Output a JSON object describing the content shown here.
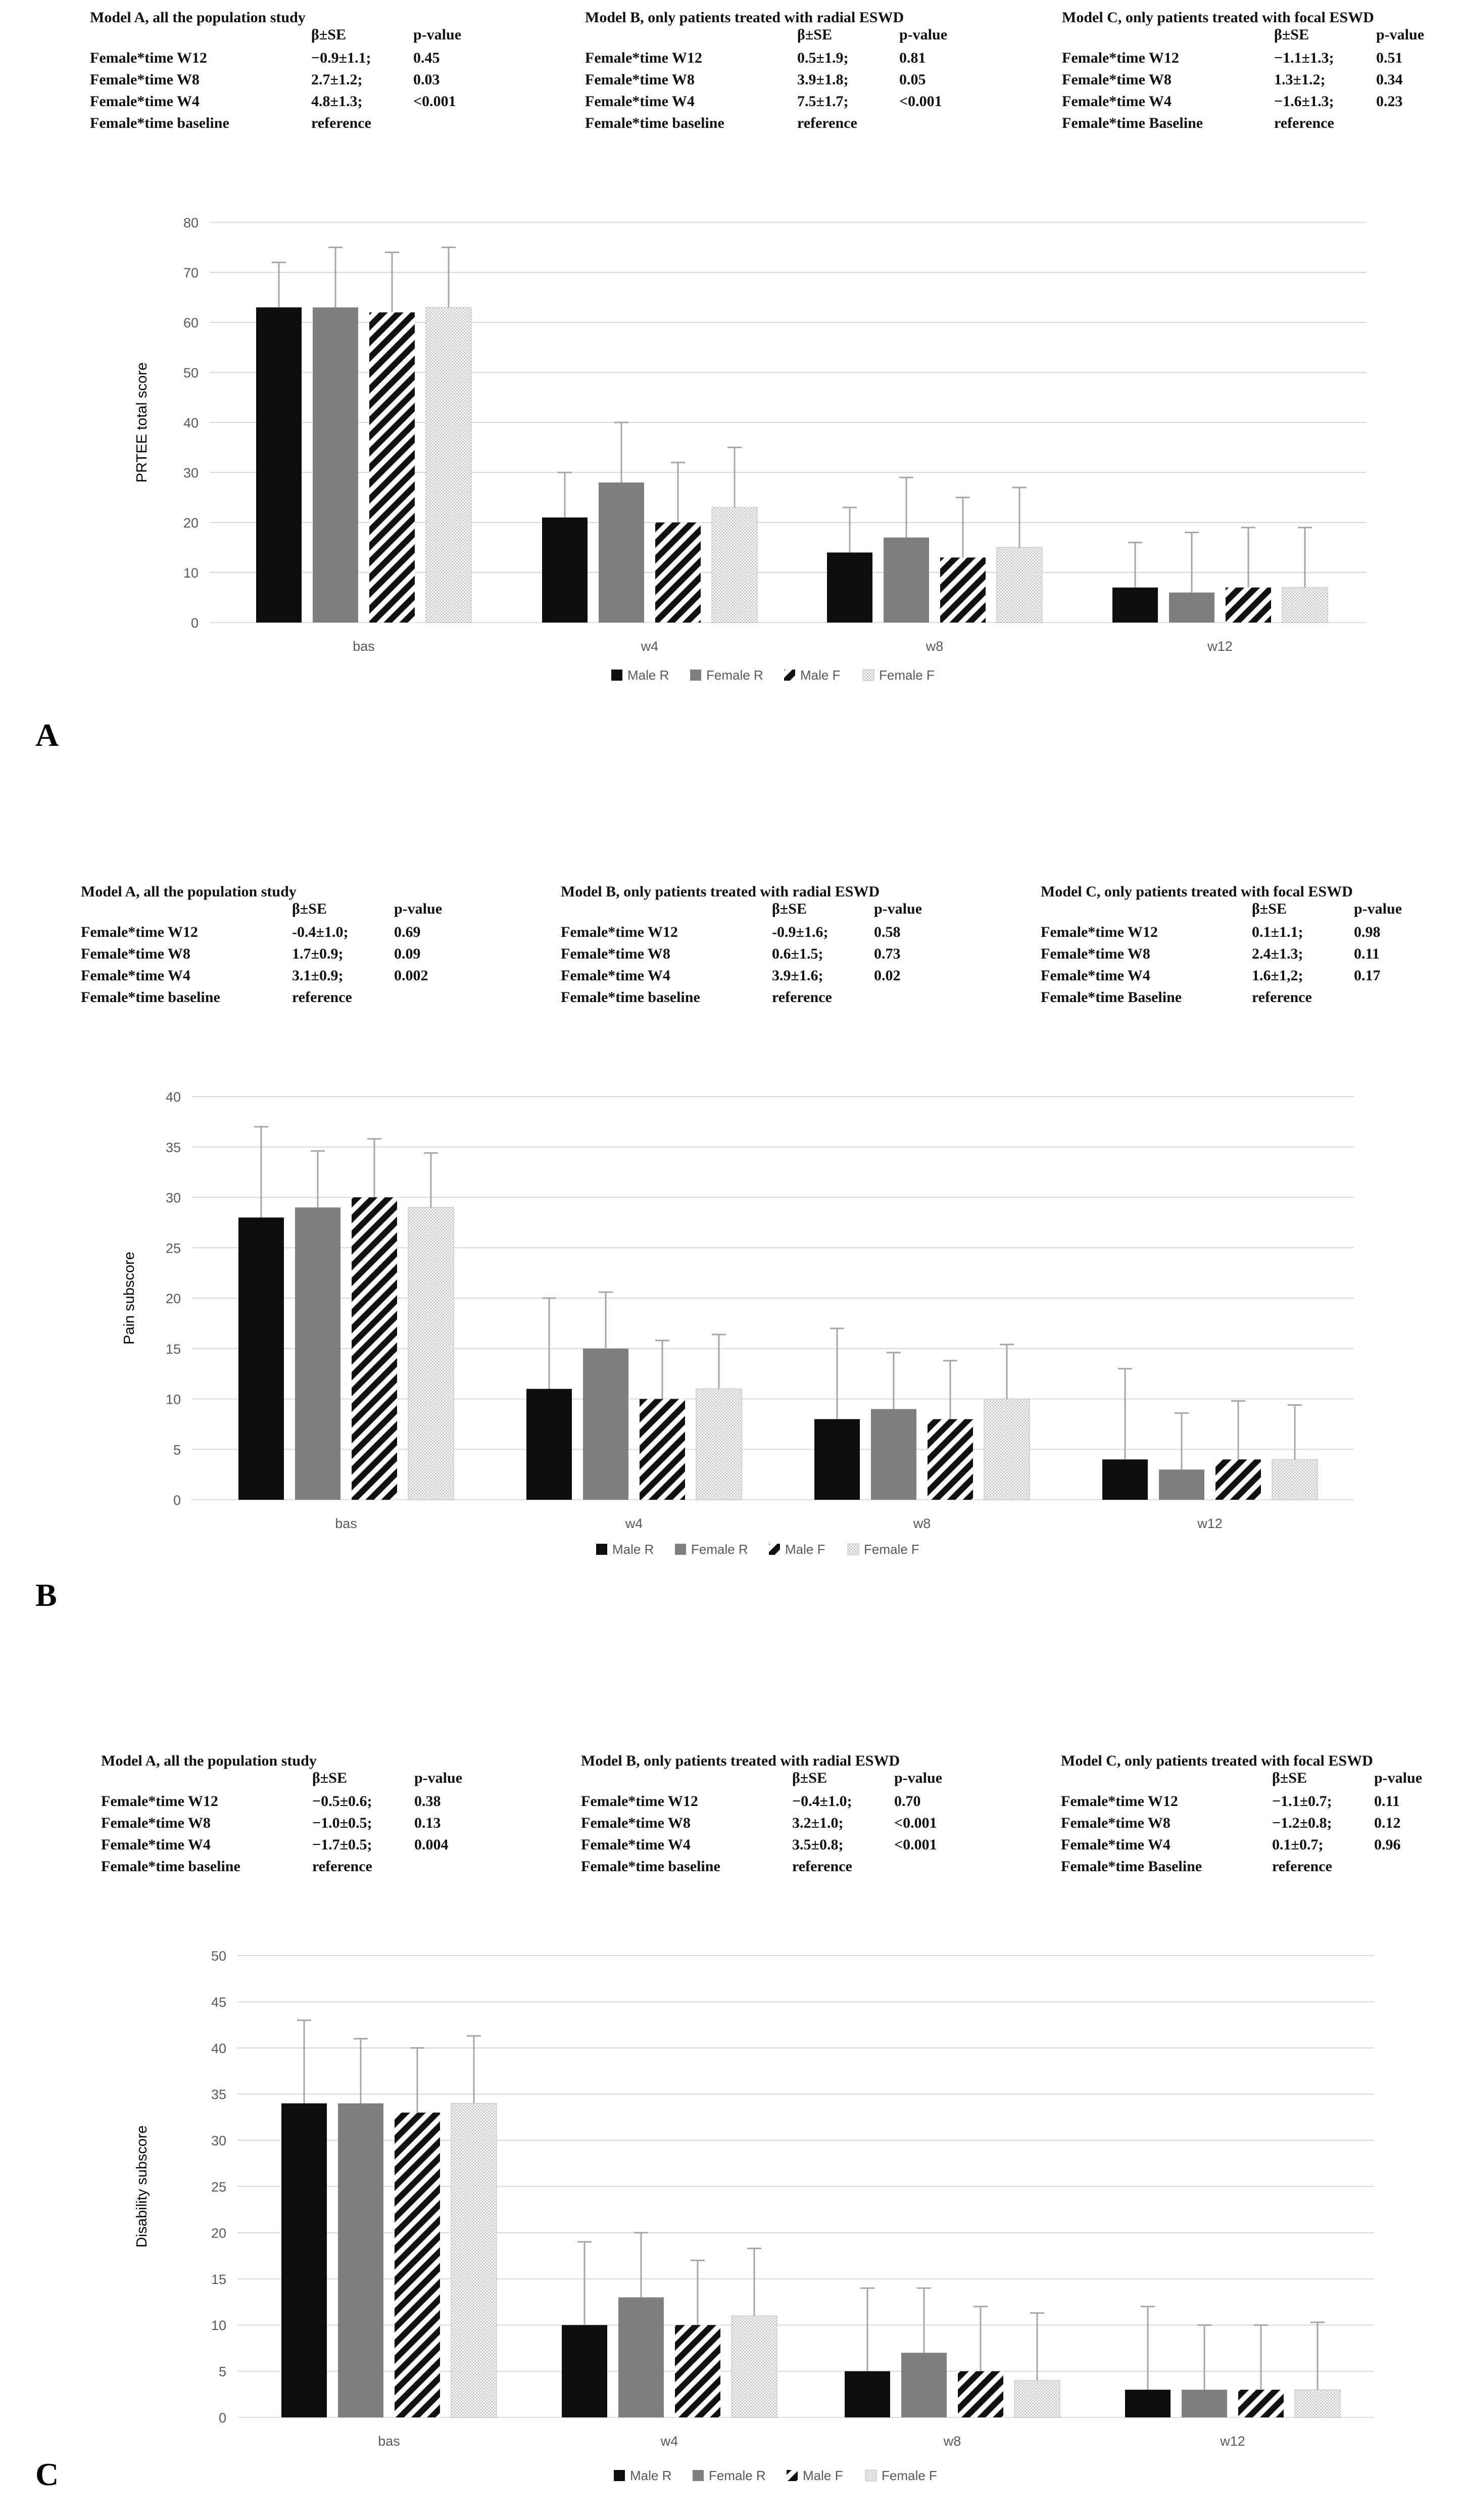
{
  "colors": {
    "male_r": "#0d0d0d",
    "female_r": "#7f7f7f",
    "male_f": "#111111",
    "female_f": "#d6d6d6",
    "gridline": "#d9d9d9",
    "error_bar": "#a6a6a6",
    "axis_text": "#595959"
  },
  "panels": [
    {
      "letter": "A",
      "models": [
        {
          "title": "Model A, all the population study",
          "h_beta": "β±SE",
          "h_p": "p-value",
          "rows": [
            {
              "label": "Female*time W12",
              "beta": "−0.9±1.1;",
              "p": "0.45"
            },
            {
              "label": "Female*time W8",
              "beta": "2.7±1.2;",
              "p": "0.03"
            },
            {
              "label": "Female*time W4",
              "beta": "4.8±1.3;",
              "p": "<0.001"
            },
            {
              "label": "Female*time baseline",
              "beta": "reference",
              "p": ""
            }
          ]
        },
        {
          "title": "Model B, only patients treated with radial ESWD",
          "h_beta": "β±SE",
          "h_p": "p-value",
          "rows": [
            {
              "label": "Female*time W12",
              "beta": "0.5±1.9;",
              "p": "0.81"
            },
            {
              "label": "Female*time W8",
              "beta": "3.9±1.8;",
              "p": "0.05"
            },
            {
              "label": "Female*time W4",
              "beta": "7.5±1.7;",
              "p": "<0.001"
            },
            {
              "label": "Female*time baseline",
              "beta": "reference",
              "p": ""
            }
          ]
        },
        {
          "title": "Model C, only patients treated with focal ESWD",
          "h_beta": "β±SE",
          "h_p": "p-value",
          "rows": [
            {
              "label": "Female*time W12",
              "beta": "−1.1±1.3;",
              "p": "0.51"
            },
            {
              "label": "Female*time W8",
              "beta": "1.3±1.2;",
              "p": "0.34"
            },
            {
              "label": "Female*time W4",
              "beta": "−1.6±1.3;",
              "p": "0.23"
            },
            {
              "label": "Female*time Baseline",
              "beta": "reference",
              "p": ""
            }
          ]
        }
      ]
    },
    {
      "letter": "B",
      "models": [
        {
          "title": "Model A, all the population study",
          "h_beta": "β±SE",
          "h_p": "p-value",
          "rows": [
            {
              "label": "Female*time W12",
              "beta": "-0.4±1.0;",
              "p": "0.69"
            },
            {
              "label": "Female*time W8",
              "beta": "1.7±0.9;",
              "p": "0.09"
            },
            {
              "label": "Female*time W4",
              "beta": "3.1±0.9;",
              "p": "0.002"
            },
            {
              "label": "Female*time baseline",
              "beta": "reference",
              "p": ""
            }
          ]
        },
        {
          "title": "Model B, only patients treated with radial ESWD",
          "h_beta": "β±SE",
          "h_p": "p-value",
          "rows": [
            {
              "label": "Female*time W12",
              "beta": "-0.9±1.6;",
              "p": "0.58"
            },
            {
              "label": "Female*time W8",
              "beta": "0.6±1.5;",
              "p": "0.73"
            },
            {
              "label": "Female*time W4",
              "beta": "3.9±1.6;",
              "p": "0.02"
            },
            {
              "label": "Female*time baseline",
              "beta": "reference",
              "p": ""
            }
          ]
        },
        {
          "title": "Model C, only patients treated with focal ESWD",
          "h_beta": "β±SE",
          "h_p": "p-value",
          "rows": [
            {
              "label": "Female*time W12",
              "beta": "0.1±1.1;",
              "p": "0.98"
            },
            {
              "label": "Female*time W8",
              "beta": "2.4±1.3;",
              "p": "0.11"
            },
            {
              "label": "Female*time W4",
              "beta": "1.6±1,2;",
              "p": "0.17"
            },
            {
              "label": "Female*time Baseline",
              "beta": "reference",
              "p": ""
            }
          ]
        }
      ]
    },
    {
      "letter": "C",
      "models": [
        {
          "title": "Model A, all the population study",
          "h_beta": "β±SE",
          "h_p": "p-value",
          "rows": [
            {
              "label": "Female*time W12",
              "beta": "−0.5±0.6;",
              "p": "0.38"
            },
            {
              "label": "Female*time W8",
              "beta": "−1.0±0.5;",
              "p": "0.13"
            },
            {
              "label": "Female*time W4",
              "beta": "−1.7±0.5;",
              "p": "0.004"
            },
            {
              "label": "Female*time baseline",
              "beta": "reference",
              "p": ""
            }
          ]
        },
        {
          "title": "Model B, only patients treated with radial ESWD",
          "h_beta": "β±SE",
          "h_p": "p-value",
          "rows": [
            {
              "label": "Female*time W12",
              "beta": "−0.4±1.0;",
              "p": "0.70"
            },
            {
              "label": "Female*time W8",
              "beta": "3.2±1.0;",
              "p": "<0.001"
            },
            {
              "label": "Female*time W4",
              "beta": "3.5±0.8;",
              "p": "<0.001"
            },
            {
              "label": "Female*time baseline",
              "beta": "reference",
              "p": ""
            }
          ]
        },
        {
          "title": "Model C, only patients treated with focal ESWD",
          "h_beta": "β±SE",
          "h_p": "p-value",
          "rows": [
            {
              "label": "Female*time W12",
              "beta": "−1.1±0.7;",
              "p": "0.11"
            },
            {
              "label": "Female*time W8",
              "beta": "−1.2±0.8;",
              "p": "0.12"
            },
            {
              "label": "Female*time W4",
              "beta": "0.1±0.7;",
              "p": "0.96"
            },
            {
              "label": "Female*time Baseline",
              "beta": "reference",
              "p": ""
            }
          ]
        }
      ]
    }
  ],
  "chart_data": [
    {
      "type": "bar",
      "panel": "A",
      "ylabel": "PRTEE total score",
      "xlabel": "",
      "ylim": [
        0,
        80
      ],
      "yticks": [
        0,
        10,
        20,
        30,
        40,
        50,
        60,
        70,
        80
      ],
      "grid": true,
      "legend": "bottom",
      "categories": [
        "bas",
        "w4",
        "w8",
        "w12"
      ],
      "series": [
        {
          "name": "Male R",
          "values": [
            63,
            21,
            14,
            7
          ],
          "err": [
            9,
            9,
            9,
            9
          ]
        },
        {
          "name": "Female R",
          "values": [
            63,
            28,
            17,
            6
          ],
          "err": [
            12,
            12,
            12,
            12
          ]
        },
        {
          "name": "Male F",
          "values": [
            62,
            20,
            13,
            7
          ],
          "err": [
            12,
            12,
            12,
            12
          ]
        },
        {
          "name": "Female F",
          "values": [
            63,
            23,
            15,
            7
          ],
          "err": [
            12,
            12,
            12,
            12
          ]
        }
      ]
    },
    {
      "type": "bar",
      "panel": "B",
      "ylabel": "Pain subscore",
      "xlabel": "",
      "ylim": [
        0,
        40
      ],
      "yticks": [
        0,
        5,
        10,
        15,
        20,
        25,
        30,
        35,
        40
      ],
      "grid": true,
      "legend": "bottom",
      "categories": [
        "bas",
        "w4",
        "w8",
        "w12"
      ],
      "series": [
        {
          "name": "Male R",
          "values": [
            28,
            11,
            8,
            4
          ],
          "err": [
            9,
            9,
            9,
            9
          ]
        },
        {
          "name": "Female R",
          "values": [
            29,
            15,
            9,
            3
          ],
          "err": [
            5.6,
            5.6,
            5.6,
            5.6
          ]
        },
        {
          "name": "Male F",
          "values": [
            30,
            10,
            8,
            4
          ],
          "err": [
            5.8,
            5.8,
            5.8,
            5.8
          ]
        },
        {
          "name": "Female F",
          "values": [
            29,
            11,
            10,
            4
          ],
          "err": [
            5.4,
            5.4,
            5.4,
            5.4
          ]
        }
      ]
    },
    {
      "type": "bar",
      "panel": "C",
      "ylabel": "Disability subscore",
      "xlabel": "",
      "ylim": [
        0,
        50
      ],
      "yticks": [
        0,
        5,
        10,
        15,
        20,
        25,
        30,
        35,
        40,
        45,
        50
      ],
      "grid": true,
      "legend": "bottom",
      "categories": [
        "bas",
        "w4",
        "w8",
        "w12"
      ],
      "series": [
        {
          "name": "Male R",
          "values": [
            34,
            10,
            5,
            3
          ],
          "err": [
            9,
            9,
            9,
            9
          ]
        },
        {
          "name": "Female R",
          "values": [
            34,
            13,
            7,
            3
          ],
          "err": [
            7,
            7,
            7,
            7
          ]
        },
        {
          "name": "Male F",
          "values": [
            33,
            10,
            5,
            3
          ],
          "err": [
            7,
            7,
            7,
            7
          ]
        },
        {
          "name": "Female F",
          "values": [
            34,
            11,
            4,
            3
          ],
          "err": [
            7.3,
            7.3,
            7.3,
            7.3
          ]
        }
      ]
    }
  ]
}
